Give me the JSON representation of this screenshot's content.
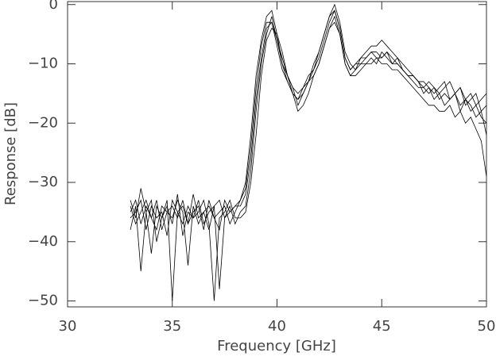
{
  "chart_data": {
    "type": "line",
    "x_label": "Frequency [GHz]",
    "y_label": "Response [dB]",
    "xlim": [
      30,
      50
    ],
    "xticks": [
      30,
      35,
      40,
      45,
      50
    ],
    "ylim": [
      -51,
      0.5
    ],
    "yticks": [
      0,
      -10,
      -20,
      -30,
      -40,
      -50
    ],
    "x": [
      33,
      33.25,
      33.5,
      33.75,
      34,
      34.25,
      34.5,
      34.75,
      35,
      35.25,
      35.5,
      35.75,
      36,
      36.25,
      36.5,
      36.75,
      37,
      37.25,
      37.5,
      37.75,
      38,
      38.25,
      38.5,
      38.75,
      39,
      39.25,
      39.5,
      39.75,
      40,
      40.25,
      40.5,
      40.75,
      41,
      41.25,
      41.5,
      41.75,
      42,
      42.25,
      42.5,
      42.75,
      43,
      43.25,
      43.5,
      43.75,
      44,
      44.25,
      44.5,
      44.75,
      45,
      45.25,
      45.5,
      45.75,
      46,
      46.25,
      46.5,
      46.75,
      47,
      47.25,
      47.5,
      47.75,
      48,
      48.25,
      48.5,
      48.75,
      49,
      49.25,
      49.5,
      49.75,
      50
    ],
    "series": [
      {
        "color": "#000000",
        "values": [
          -35,
          -33,
          -37,
          -34,
          -36,
          -33,
          -38,
          -35,
          -34,
          -36,
          -33,
          -37,
          -35,
          -34,
          -38,
          -33,
          -36,
          -35,
          -34,
          -37,
          -35,
          -33,
          -31,
          -24,
          -14,
          -7,
          -3,
          -3,
          -7,
          -11,
          -13,
          -15,
          -16,
          -14,
          -13,
          -11,
          -9,
          -6,
          -3,
          -1,
          -4,
          -9,
          -11,
          -10,
          -10,
          -9,
          -8,
          -9,
          -9,
          -8,
          -10,
          -10,
          -11,
          -12,
          -13,
          -14,
          -14,
          -15,
          -14,
          -16,
          -15,
          -16,
          -15,
          -17,
          -16,
          -18,
          -17,
          -19,
          -20
        ]
      },
      {
        "color": "#000000",
        "values": [
          -38,
          -34,
          -45,
          -35,
          -33,
          -40,
          -36,
          -34,
          -37,
          -32,
          -39,
          -35,
          -36,
          -33,
          -37,
          -35,
          -34,
          -48,
          -36,
          -34,
          -37,
          -35,
          -34,
          -28,
          -18,
          -10,
          -5,
          -2,
          -6,
          -10,
          -12,
          -14,
          -17,
          -15,
          -13,
          -12,
          -10,
          -7,
          -4,
          -2,
          -5,
          -10,
          -12,
          -11,
          -10,
          -10,
          -9,
          -10,
          -8,
          -9,
          -10,
          -9,
          -11,
          -12,
          -12,
          -13,
          -15,
          -14,
          -16,
          -15,
          -17,
          -16,
          -15,
          -18,
          -16,
          -17,
          -19,
          -18,
          -22
        ]
      },
      {
        "color": "#000000",
        "values": [
          -33,
          -36,
          -31,
          -35,
          -42,
          -34,
          -36,
          -33,
          -50,
          -35,
          -34,
          -37,
          -32,
          -36,
          -35,
          -38,
          -34,
          -33,
          -36,
          -35,
          -34,
          -34,
          -32,
          -26,
          -16,
          -9,
          -4,
          -3,
          -6,
          -9,
          -12,
          -14,
          -15,
          -14,
          -12,
          -11,
          -8,
          -5,
          -2,
          0,
          -3,
          -8,
          -10,
          -11,
          -9,
          -8,
          -7,
          -7,
          -6,
          -7,
          -8,
          -9,
          -10,
          -11,
          -12,
          -13,
          -13,
          -14,
          -15,
          -14,
          -13,
          -16,
          -15,
          -14,
          -17,
          -16,
          -15,
          -18,
          -17
        ]
      },
      {
        "color": "#000000",
        "values": [
          -36,
          -35,
          -33,
          -38,
          -34,
          -36,
          -35,
          -39,
          -33,
          -35,
          -37,
          -34,
          -36,
          -35,
          -33,
          -37,
          -50,
          -36,
          -35,
          -33,
          -36,
          -36,
          -35,
          -30,
          -22,
          -12,
          -6,
          -4,
          -5,
          -8,
          -12,
          -15,
          -18,
          -17,
          -15,
          -12,
          -10,
          -7,
          -4,
          -3,
          -5,
          -10,
          -12,
          -12,
          -11,
          -10,
          -10,
          -9,
          -10,
          -10,
          -11,
          -11,
          -12,
          -13,
          -14,
          -15,
          -16,
          -17,
          -17,
          -18,
          -18,
          -17,
          -19,
          -18,
          -20,
          -19,
          -21,
          -23,
          -29
        ]
      },
      {
        "color": "#000000",
        "values": [
          -34,
          -37,
          -35,
          -33,
          -36,
          -38,
          -34,
          -35,
          -36,
          -33,
          -35,
          -44,
          -34,
          -37,
          -35,
          -34,
          -36,
          -38,
          -33,
          -35,
          -34,
          -33,
          -30,
          -22,
          -12,
          -6,
          -2,
          -1,
          -5,
          -10,
          -13,
          -15,
          -16,
          -15,
          -13,
          -10,
          -8,
          -5,
          -2,
          -1,
          -4,
          -9,
          -11,
          -10,
          -9,
          -9,
          -8,
          -8,
          -9,
          -8,
          -9,
          -10,
          -11,
          -12,
          -12,
          -13,
          -14,
          -13,
          -14,
          -15,
          -14,
          -13,
          -15,
          -14,
          -16,
          -15,
          -17,
          -16,
          -15
        ]
      }
    ]
  }
}
